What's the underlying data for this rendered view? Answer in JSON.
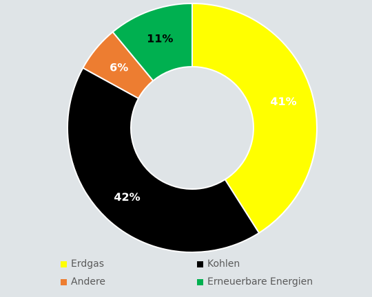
{
  "chart_data": {
    "type": "pie",
    "donut": true,
    "categories": [
      "Erdgas",
      "Kohlen",
      "Andere",
      "Erneuerbare Energien"
    ],
    "values": [
      41,
      42,
      6,
      11
    ],
    "labels": [
      "41%",
      "42%",
      "6%",
      "11%"
    ],
    "colors": [
      "#ffff00",
      "#000000",
      "#ed7d31",
      "#00b050"
    ],
    "label_colors": [
      "#ffffff",
      "#ffffff",
      "#ffffff",
      "#000000"
    ],
    "start": "top, clockwise",
    "legend_position": "bottom",
    "title": ""
  },
  "legend": {
    "items": [
      {
        "label": "Erdgas",
        "color": "#ffff00"
      },
      {
        "label": "Kohlen",
        "color": "#000000"
      },
      {
        "label": "Andere",
        "color": "#ed7d31"
      },
      {
        "label": "Erneuerbare Energien",
        "color": "#00b050"
      }
    ]
  }
}
